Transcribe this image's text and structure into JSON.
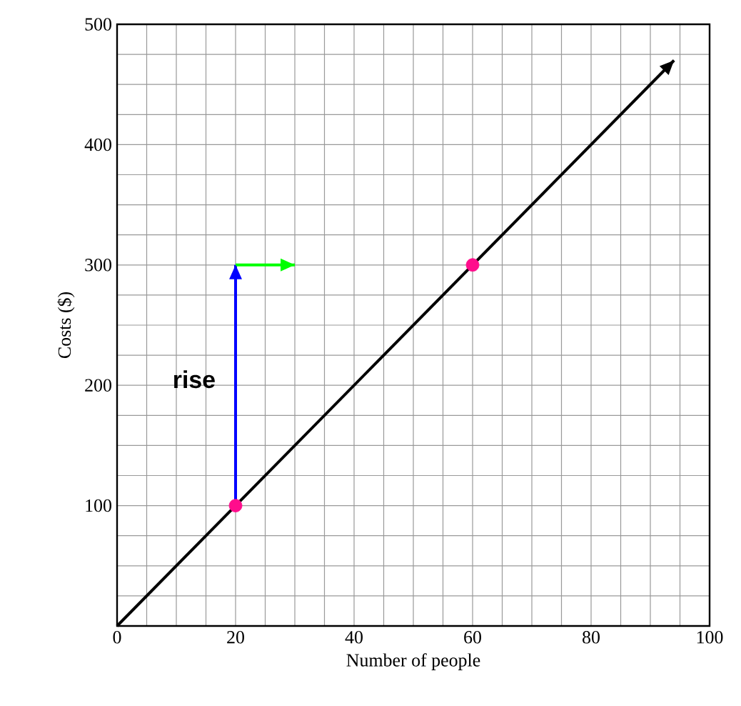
{
  "chart_data": {
    "type": "line",
    "xlabel": "Number of people",
    "ylabel": "Costs ($)",
    "xlim": [
      0,
      100
    ],
    "ylim": [
      0,
      500
    ],
    "xticks": [
      0,
      20,
      40,
      60,
      80,
      100
    ],
    "yticks": [
      {
        "value": 0,
        "label": null
      },
      100,
      200,
      300,
      400,
      500
    ],
    "grid": true,
    "series": [
      {
        "color": "#000000",
        "x": [
          0,
          94
        ],
        "values": [
          0,
          470
        ],
        "marker": "none"
      },
      {
        "color": "#0000ff",
        "x": [
          20,
          20
        ],
        "values": [
          100,
          300
        ],
        "marker": "none"
      },
      {
        "color": "#00ff00",
        "x": [
          20,
          30
        ],
        "values": [
          300,
          300
        ],
        "marker": "none"
      },
      {
        "type": "scatter",
        "color": "#ff0d8c",
        "x": [
          20,
          60
        ],
        "values": [
          100,
          300
        ],
        "marker": "circle"
      }
    ],
    "annotations": [
      "rise"
    ]
  }
}
